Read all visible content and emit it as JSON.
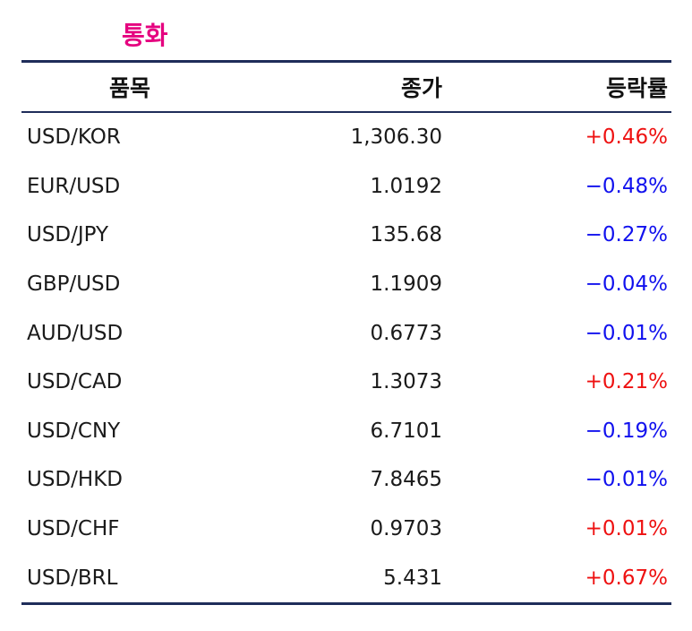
{
  "title": "통화",
  "colors": {
    "title": "#e5007f",
    "rule": "#1f2d5a",
    "up": "#ee1111",
    "down": "#1111ee"
  },
  "headers": {
    "item": "품목",
    "close": "종가",
    "change": "등락률"
  },
  "rows": [
    {
      "item": "USD/KOR",
      "close": "1,306.30",
      "change": "+0.46%",
      "direction": "up"
    },
    {
      "item": "EUR/USD",
      "close": "1.0192",
      "change": "−0.48%",
      "direction": "down"
    },
    {
      "item": "USD/JPY",
      "close": "135.68",
      "change": "−0.27%",
      "direction": "down"
    },
    {
      "item": "GBP/USD",
      "close": "1.1909",
      "change": "−0.04%",
      "direction": "down"
    },
    {
      "item": "AUD/USD",
      "close": "0.6773",
      "change": "−0.01%",
      "direction": "down"
    },
    {
      "item": "USD/CAD",
      "close": "1.3073",
      "change": "+0.21%",
      "direction": "up"
    },
    {
      "item": "USD/CNY",
      "close": "6.7101",
      "change": "−0.19%",
      "direction": "down"
    },
    {
      "item": "USD/HKD",
      "close": "7.8465",
      "change": "−0.01%",
      "direction": "down"
    },
    {
      "item": "USD/CHF",
      "close": "0.9703",
      "change": "+0.01%",
      "direction": "up"
    },
    {
      "item": "USD/BRL",
      "close": "5.431",
      "change": "+0.67%",
      "direction": "up"
    }
  ]
}
